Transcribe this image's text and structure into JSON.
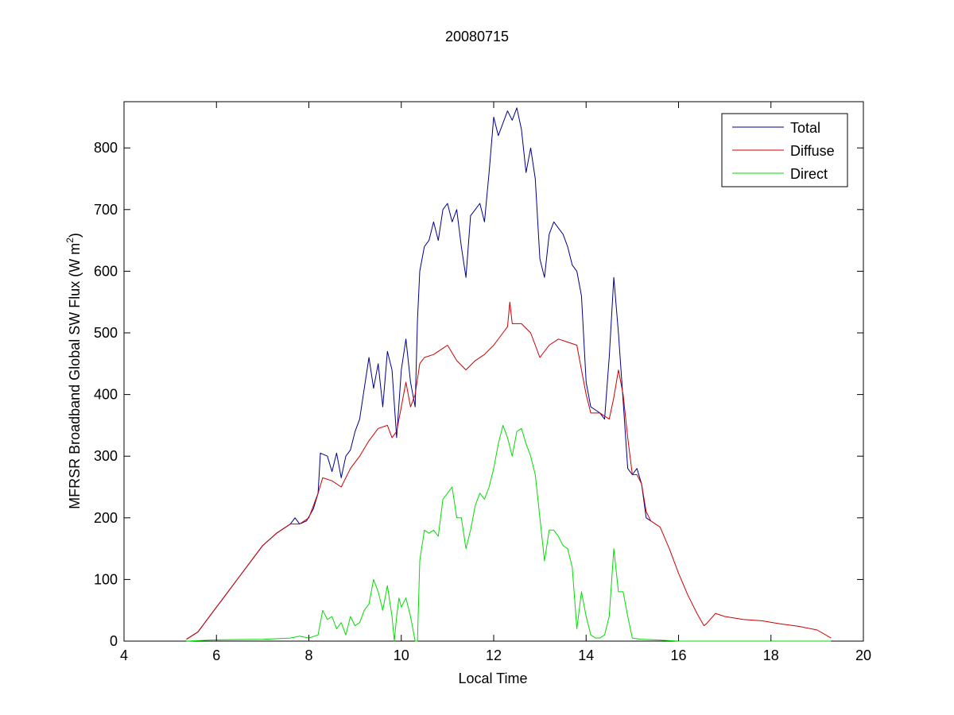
{
  "chart_data": {
    "type": "line",
    "title": "20080715",
    "xlabel": "Local Time",
    "ylabel": "MFRSR Broadband Global SW Flux (W m",
    "ylabel_sup": "2",
    "ylabel_close": ")",
    "xlim": [
      4,
      20
    ],
    "ylim": [
      0,
      875
    ],
    "xticks": [
      4,
      6,
      8,
      10,
      12,
      14,
      16,
      18,
      20
    ],
    "yticks": [
      0,
      100,
      200,
      300,
      400,
      500,
      600,
      700,
      800
    ],
    "grid": false,
    "legend_position": "top-right",
    "colors": {
      "Total": "#00008b",
      "Diffuse": "#cc0000",
      "Direct": "#00dd00"
    },
    "series": [
      {
        "name": "Total",
        "x": [
          5.35,
          5.6,
          5.9,
          6.2,
          6.5,
          6.8,
          7.0,
          7.3,
          7.6,
          7.7,
          7.8,
          7.95,
          8.1,
          8.2,
          8.25,
          8.4,
          8.5,
          8.6,
          8.7,
          8.8,
          8.9,
          9.0,
          9.1,
          9.2,
          9.3,
          9.4,
          9.5,
          9.6,
          9.7,
          9.8,
          9.9,
          10.0,
          10.1,
          10.2,
          10.3,
          10.35,
          10.4,
          10.5,
          10.6,
          10.7,
          10.8,
          10.9,
          11.0,
          11.1,
          11.2,
          11.3,
          11.4,
          11.5,
          11.6,
          11.7,
          11.8,
          11.9,
          12.0,
          12.1,
          12.2,
          12.3,
          12.4,
          12.5,
          12.6,
          12.7,
          12.8,
          12.9,
          13.0,
          13.1,
          13.2,
          13.3,
          13.4,
          13.5,
          13.6,
          13.7,
          13.8,
          13.9,
          14.0,
          14.1,
          14.2,
          14.3,
          14.4,
          14.5,
          14.6,
          14.7,
          14.8,
          14.9,
          15.0,
          15.1,
          15.2,
          15.3,
          15.4
        ],
        "values": [
          3,
          15,
          45,
          75,
          105,
          135,
          155,
          175,
          190,
          200,
          190,
          195,
          215,
          240,
          305,
          300,
          275,
          305,
          265,
          300,
          310,
          340,
          360,
          410,
          460,
          410,
          450,
          380,
          470,
          440,
          330,
          440,
          490,
          420,
          380,
          520,
          600,
          640,
          650,
          680,
          650,
          700,
          710,
          680,
          700,
          640,
          590,
          690,
          700,
          710,
          680,
          760,
          850,
          820,
          840,
          860,
          845,
          865,
          830,
          760,
          800,
          750,
          620,
          590,
          660,
          680,
          670,
          660,
          640,
          610,
          600,
          560,
          420,
          380,
          375,
          370,
          360,
          460,
          590,
          500,
          390,
          280,
          270,
          280,
          255,
          200,
          195
        ]
      },
      {
        "name": "Diffuse",
        "x": [
          5.35,
          5.6,
          5.9,
          6.2,
          6.5,
          6.8,
          7.0,
          7.3,
          7.6,
          7.8,
          8.0,
          8.2,
          8.3,
          8.5,
          8.7,
          8.9,
          9.1,
          9.3,
          9.5,
          9.7,
          9.8,
          9.9,
          10.0,
          10.1,
          10.2,
          10.3,
          10.4,
          10.5,
          10.7,
          10.9,
          11.0,
          11.2,
          11.4,
          11.6,
          11.8,
          12.0,
          12.2,
          12.3,
          12.35,
          12.4,
          12.6,
          12.8,
          13.0,
          13.2,
          13.4,
          13.6,
          13.8,
          13.9,
          14.0,
          14.1,
          14.3,
          14.5,
          14.6,
          14.7,
          14.8,
          14.9,
          15.0,
          15.1,
          15.2,
          15.3,
          15.4,
          15.6,
          15.8,
          16.0,
          16.2,
          16.4,
          16.55,
          16.6,
          16.8,
          17.0,
          17.4,
          17.8,
          18.2,
          18.6,
          19.0,
          19.3
        ],
        "values": [
          3,
          15,
          45,
          75,
          105,
          135,
          155,
          175,
          190,
          190,
          200,
          240,
          265,
          260,
          250,
          280,
          300,
          325,
          345,
          350,
          330,
          340,
          380,
          420,
          380,
          400,
          450,
          460,
          465,
          475,
          480,
          455,
          440,
          455,
          465,
          480,
          500,
          510,
          550,
          515,
          515,
          500,
          460,
          480,
          490,
          485,
          480,
          440,
          400,
          370,
          370,
          360,
          395,
          440,
          400,
          330,
          270,
          270,
          255,
          210,
          195,
          185,
          150,
          110,
          75,
          45,
          25,
          28,
          45,
          40,
          35,
          33,
          28,
          24,
          18,
          5
        ]
      },
      {
        "name": "Direct",
        "x": [
          5.35,
          6.0,
          7.0,
          7.6,
          7.8,
          8.0,
          8.2,
          8.3,
          8.4,
          8.5,
          8.6,
          8.7,
          8.8,
          8.9,
          9.0,
          9.1,
          9.2,
          9.3,
          9.4,
          9.5,
          9.6,
          9.7,
          9.8,
          9.85,
          9.9,
          9.95,
          10.0,
          10.1,
          10.2,
          10.3,
          10.35,
          10.4,
          10.5,
          10.6,
          10.7,
          10.8,
          10.9,
          11.0,
          11.1,
          11.2,
          11.3,
          11.4,
          11.5,
          11.6,
          11.7,
          11.8,
          11.9,
          12.0,
          12.1,
          12.2,
          12.3,
          12.4,
          12.5,
          12.6,
          12.7,
          12.8,
          12.9,
          13.0,
          13.1,
          13.2,
          13.3,
          13.4,
          13.5,
          13.6,
          13.7,
          13.8,
          13.9,
          14.0,
          14.1,
          14.2,
          14.3,
          14.4,
          14.5,
          14.6,
          14.7,
          14.8,
          14.9,
          15.0,
          15.2,
          15.5,
          16.0,
          17.0,
          18.0,
          19.3
        ],
        "values": [
          0,
          2,
          3,
          5,
          8,
          5,
          10,
          50,
          35,
          40,
          20,
          30,
          10,
          40,
          25,
          30,
          50,
          60,
          100,
          80,
          50,
          90,
          40,
          0,
          40,
          70,
          55,
          70,
          40,
          0,
          0,
          130,
          180,
          175,
          180,
          170,
          230,
          240,
          250,
          200,
          200,
          150,
          180,
          220,
          240,
          230,
          250,
          280,
          320,
          350,
          330,
          300,
          340,
          345,
          320,
          300,
          270,
          200,
          130,
          180,
          180,
          170,
          155,
          150,
          120,
          20,
          80,
          40,
          10,
          5,
          5,
          10,
          40,
          150,
          80,
          80,
          40,
          5,
          3,
          2,
          0,
          0,
          0,
          0
        ]
      }
    ]
  }
}
